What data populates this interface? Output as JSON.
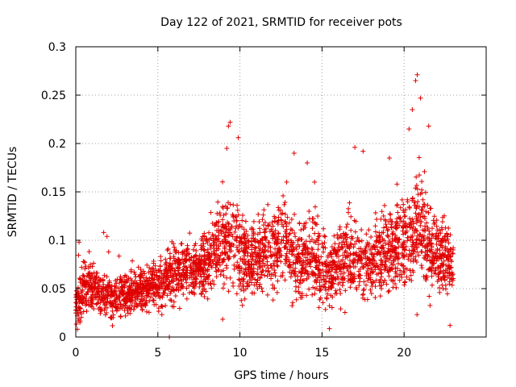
{
  "chart_data": {
    "type": "scatter",
    "title": "Day 122 of 2021, SRMTID for receiver pots",
    "xlabel": "GPS time / hours",
    "ylabel": "SRMTID / TECUs",
    "xlim": [
      0,
      25
    ],
    "ylim": [
      0,
      0.3
    ],
    "x_ticks": [
      0,
      5,
      10,
      15,
      20
    ],
    "x_tick_labels": [
      "0",
      "5",
      "10",
      "15",
      "20"
    ],
    "y_ticks": [
      0,
      0.05,
      0.1,
      0.15,
      0.2,
      0.25,
      0.3
    ],
    "y_tick_labels": [
      "0",
      "0.05",
      "0.1",
      "0.15",
      "0.2",
      "0.25",
      "0.3"
    ],
    "grid": true,
    "marker": "plus",
    "series": [
      {
        "name": "SRMTID",
        "color": "#e00000",
        "profile_x": [
          0,
          0.5,
          1,
          1.5,
          2,
          2.5,
          3,
          3.5,
          4,
          4.5,
          5,
          5.5,
          6,
          6.5,
          7,
          7.5,
          8,
          8.5,
          9,
          9.5,
          10,
          10.5,
          11,
          11.5,
          12,
          12.5,
          13,
          13.5,
          14,
          14.5,
          15,
          15.5,
          16,
          16.5,
          17,
          17.5,
          18,
          18.5,
          19,
          19.5,
          20,
          20.5,
          21,
          21.5,
          22,
          22.5,
          23
        ],
        "profile_median": [
          0.035,
          0.05,
          0.052,
          0.045,
          0.04,
          0.042,
          0.045,
          0.047,
          0.048,
          0.05,
          0.055,
          0.06,
          0.065,
          0.07,
          0.068,
          0.072,
          0.08,
          0.09,
          0.1,
          0.105,
          0.09,
          0.08,
          0.075,
          0.085,
          0.095,
          0.1,
          0.09,
          0.08,
          0.085,
          0.09,
          0.07,
          0.065,
          0.075,
          0.085,
          0.08,
          0.075,
          0.08,
          0.085,
          0.09,
          0.095,
          0.1,
          0.11,
          0.115,
          0.1,
          0.09,
          0.085,
          0.075
        ],
        "profile_spread": [
          0.02,
          0.025,
          0.02,
          0.02,
          0.02,
          0.02,
          0.02,
          0.02,
          0.02,
          0.02,
          0.022,
          0.025,
          0.025,
          0.025,
          0.025,
          0.025,
          0.03,
          0.035,
          0.04,
          0.045,
          0.04,
          0.035,
          0.03,
          0.035,
          0.04,
          0.04,
          0.035,
          0.03,
          0.035,
          0.04,
          0.03,
          0.025,
          0.03,
          0.035,
          0.03,
          0.03,
          0.03,
          0.035,
          0.035,
          0.04,
          0.04,
          0.045,
          0.05,
          0.04,
          0.035,
          0.03,
          0.03
        ],
        "point_count": 3000,
        "highlight_points": [
          {
            "x": 9.4,
            "y": 0.222
          },
          {
            "x": 9.3,
            "y": 0.218
          },
          {
            "x": 9.2,
            "y": 0.195
          },
          {
            "x": 9.9,
            "y": 0.206
          },
          {
            "x": 20.8,
            "y": 0.271
          },
          {
            "x": 20.7,
            "y": 0.265
          },
          {
            "x": 21.0,
            "y": 0.247
          },
          {
            "x": 20.5,
            "y": 0.235
          },
          {
            "x": 20.3,
            "y": 0.215
          },
          {
            "x": 21.5,
            "y": 0.218
          },
          {
            "x": 13.3,
            "y": 0.19
          },
          {
            "x": 14.1,
            "y": 0.18
          },
          {
            "x": 17.0,
            "y": 0.196
          },
          {
            "x": 17.5,
            "y": 0.192
          },
          {
            "x": 1.7,
            "y": 0.108
          },
          {
            "x": 1.9,
            "y": 0.104
          },
          {
            "x": 0.2,
            "y": 0.098
          },
          {
            "x": 22.8,
            "y": 0.012
          },
          {
            "x": 5.7,
            "y": 0.0
          },
          {
            "x": 0.1,
            "y": 0.008
          },
          {
            "x": 2.0,
            "y": 0.088
          }
        ]
      }
    ]
  }
}
